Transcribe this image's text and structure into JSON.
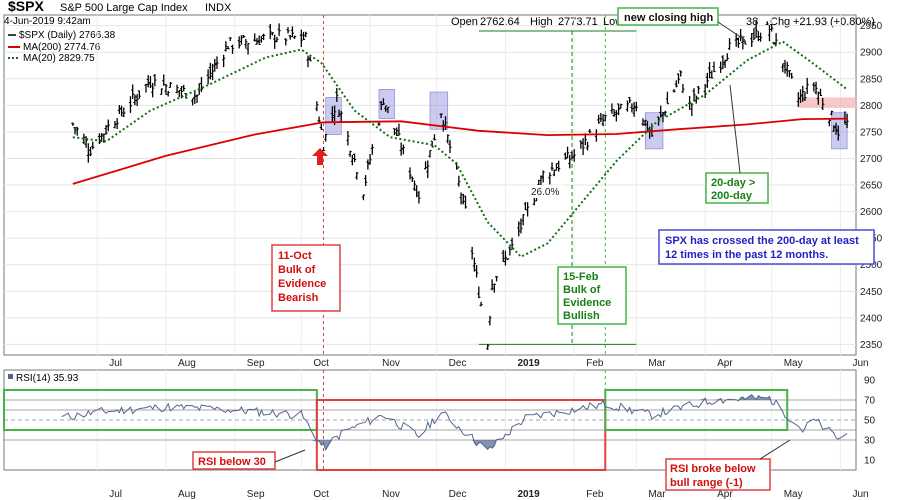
{
  "header": {
    "symbol": "$SPX",
    "name": "S&P 500 Large Cap Index",
    "exchange": "INDX",
    "datetime": "4-Jun-2019 9:42am",
    "open_label": "Open",
    "open": "2762.64",
    "high_label": "High",
    "high": "2773.71",
    "low_label": "Low",
    "vol_frag": "38",
    "chg_label": "Chg",
    "chg": "+21.93 (+0.80%)"
  },
  "legend": [
    {
      "text": "$SPX (Daily) 2766.38",
      "color": "#000000",
      "style": "bar"
    },
    {
      "text": "MA(200) 2774.76",
      "color": "#dd0000",
      "style": "solid"
    },
    {
      "text": "MA(20) 2829.75",
      "color": "#107010",
      "style": "dotted"
    }
  ],
  "annotations": {
    "new_high": "new closing high",
    "oct_box": [
      "11-Oct",
      "Bulk of",
      "Evidence",
      "Bearish"
    ],
    "feb_box": [
      "15-Feb",
      "Bulk of",
      "Evidence",
      "Bullish"
    ],
    "ma_cross": [
      "20-day >",
      "200-day"
    ],
    "spx_note": [
      "SPX has crossed the 200-day at least",
      "12 times in the past 12 months."
    ],
    "pct": "26.0%",
    "rsi_below": "RSI below 30",
    "rsi_broke": [
      "RSI broke below",
      "bull range (-1)"
    ]
  },
  "rsi": {
    "label": "RSI(14) 35.93",
    "ticks": [
      "90",
      "70",
      "50",
      "30",
      "10"
    ]
  },
  "colors": {
    "price": "#000000",
    "ma200": "#dd0000",
    "ma20": "#107010",
    "rsi_line": "#53658f",
    "red_box": "#e04040",
    "green_box": "#46b446",
    "highlight": "#8c8cdc"
  },
  "chart_data": [
    {
      "type": "bar",
      "subtype": "ohlc",
      "title": "$SPX S&P 500 Large Cap Index INDX",
      "x_tick_labels": [
        "Jul",
        "Aug",
        "Sep",
        "Oct",
        "Nov",
        "Dec",
        "2019",
        "Feb",
        "Mar",
        "Apr",
        "May",
        "Jun"
      ],
      "ylim": [
        2330,
        2970
      ],
      "y_ticks": [
        2350,
        2400,
        2450,
        2500,
        2550,
        2600,
        2650,
        2700,
        2750,
        2800,
        2850,
        2900,
        2950
      ],
      "grid": true,
      "legend_position": "top-left",
      "anchors": [
        {
          "date": "2018-06-20",
          "close": 2765
        },
        {
          "date": "2018-06-28",
          "close": 2718
        },
        {
          "date": "2018-07-06",
          "close": 2760
        },
        {
          "date": "2018-07-25",
          "close": 2846
        },
        {
          "date": "2018-08-15",
          "close": 2818
        },
        {
          "date": "2018-08-29",
          "close": 2914
        },
        {
          "date": "2018-09-20",
          "close": 2930
        },
        {
          "date": "2018-10-03",
          "close": 2925
        },
        {
          "date": "2018-10-11",
          "close": 2728
        },
        {
          "date": "2018-10-17",
          "close": 2810
        },
        {
          "date": "2018-10-29",
          "close": 2641
        },
        {
          "date": "2018-11-07",
          "close": 2813
        },
        {
          "date": "2018-11-23",
          "close": 2632
        },
        {
          "date": "2018-12-03",
          "close": 2790
        },
        {
          "date": "2018-12-14",
          "close": 2600
        },
        {
          "date": "2018-12-24",
          "close": 2351
        },
        {
          "date": "2018-12-26",
          "close": 2467
        },
        {
          "date": "2019-01-04",
          "close": 2532
        },
        {
          "date": "2019-01-18",
          "close": 2670
        },
        {
          "date": "2019-02-01",
          "close": 2706
        },
        {
          "date": "2019-02-15",
          "close": 2775
        },
        {
          "date": "2019-03-01",
          "close": 2803
        },
        {
          "date": "2019-03-08",
          "close": 2743
        },
        {
          "date": "2019-03-21",
          "close": 2854
        },
        {
          "date": "2019-03-25",
          "close": 2798
        },
        {
          "date": "2019-04-12",
          "close": 2907
        },
        {
          "date": "2019-04-30",
          "close": 2945
        },
        {
          "date": "2019-05-13",
          "close": 2812
        },
        {
          "date": "2019-05-20",
          "close": 2840
        },
        {
          "date": "2019-05-31",
          "close": 2752
        },
        {
          "date": "2019-06-04",
          "close": 2766
        }
      ],
      "ma200_points": [
        {
          "date": "2018-06-20",
          "value": 2652
        },
        {
          "date": "2018-08-01",
          "value": 2705
        },
        {
          "date": "2018-09-10",
          "value": 2745
        },
        {
          "date": "2018-10-11",
          "value": 2768
        },
        {
          "date": "2018-11-15",
          "value": 2770
        },
        {
          "date": "2018-12-20",
          "value": 2752
        },
        {
          "date": "2019-01-20",
          "value": 2744
        },
        {
          "date": "2019-02-20",
          "value": 2746
        },
        {
          "date": "2019-03-20",
          "value": 2755
        },
        {
          "date": "2019-04-20",
          "value": 2764
        },
        {
          "date": "2019-05-15",
          "value": 2774
        },
        {
          "date": "2019-06-04",
          "value": 2775
        }
      ],
      "ma20_points": [
        {
          "date": "2018-06-20",
          "value": 2740
        },
        {
          "date": "2018-07-05",
          "value": 2732
        },
        {
          "date": "2018-07-25",
          "value": 2790
        },
        {
          "date": "2018-08-20",
          "value": 2838
        },
        {
          "date": "2018-09-15",
          "value": 2890
        },
        {
          "date": "2018-10-01",
          "value": 2905
        },
        {
          "date": "2018-10-10",
          "value": 2880
        },
        {
          "date": "2018-10-25",
          "value": 2790
        },
        {
          "date": "2018-11-10",
          "value": 2740
        },
        {
          "date": "2018-11-30",
          "value": 2725
        },
        {
          "date": "2018-12-10",
          "value": 2690
        },
        {
          "date": "2018-12-24",
          "value": 2580
        },
        {
          "date": "2019-01-08",
          "value": 2515
        },
        {
          "date": "2019-01-20",
          "value": 2540
        },
        {
          "date": "2019-02-05",
          "value": 2620
        },
        {
          "date": "2019-02-20",
          "value": 2695
        },
        {
          "date": "2019-03-10",
          "value": 2768
        },
        {
          "date": "2019-04-01",
          "value": 2820
        },
        {
          "date": "2019-04-20",
          "value": 2885
        },
        {
          "date": "2019-05-06",
          "value": 2920
        },
        {
          "date": "2019-05-20",
          "value": 2878
        },
        {
          "date": "2019-06-04",
          "value": 2830
        }
      ],
      "markers": {
        "oct_11_line": "2018-10-11",
        "feb_15_line": "2019-02-15",
        "jan_guide": "2019-01-31",
        "range_top": 2940,
        "range_bottom": 2350
      },
      "highlights": [
        {
          "from": "2018-10-12",
          "to": "2018-10-19",
          "low": 2745,
          "high": 2815
        },
        {
          "from": "2018-11-05",
          "to": "2018-11-12",
          "low": 2775,
          "high": 2830
        },
        {
          "from": "2018-11-28",
          "to": "2018-12-06",
          "low": 2755,
          "high": 2825
        },
        {
          "from": "2019-03-05",
          "to": "2019-03-13",
          "low": 2718,
          "high": 2786
        },
        {
          "from": "2019-05-28",
          "to": "2019-06-04",
          "low": 2718,
          "high": 2786
        }
      ],
      "pink_band": {
        "from": "2019-05-13",
        "to": "2019-06-04",
        "low": 2795,
        "high": 2815
      }
    },
    {
      "type": "line",
      "title": "RSI(14) 35.93",
      "ylim": [
        0,
        100
      ],
      "y_ticks": [
        10,
        30,
        50,
        70,
        90
      ],
      "reference_lines": [
        30,
        40,
        50,
        60,
        70
      ],
      "anchors": [
        {
          "date": "2018-06-15",
          "value": 52
        },
        {
          "date": "2018-07-01",
          "value": 58
        },
        {
          "date": "2018-08-01",
          "value": 63
        },
        {
          "date": "2018-09-01",
          "value": 60
        },
        {
          "date": "2018-10-01",
          "value": 55
        },
        {
          "date": "2018-10-11",
          "value": 22
        },
        {
          "date": "2018-10-20",
          "value": 38
        },
        {
          "date": "2018-11-07",
          "value": 55
        },
        {
          "date": "2018-11-23",
          "value": 34
        },
        {
          "date": "2018-12-03",
          "value": 58
        },
        {
          "date": "2018-12-24",
          "value": 19
        },
        {
          "date": "2019-01-10",
          "value": 52
        },
        {
          "date": "2019-02-15",
          "value": 66
        },
        {
          "date": "2019-03-08",
          "value": 55
        },
        {
          "date": "2019-04-05",
          "value": 70
        },
        {
          "date": "2019-04-30",
          "value": 72
        },
        {
          "date": "2019-05-15",
          "value": 40
        },
        {
          "date": "2019-05-20",
          "value": 50
        },
        {
          "date": "2019-06-01",
          "value": 30
        },
        {
          "date": "2019-06-04",
          "value": 36
        }
      ],
      "boxes": [
        {
          "color": "green",
          "from": "2018-05-20",
          "to": "2018-10-08",
          "low": 40,
          "high": 80
        },
        {
          "color": "red",
          "from": "2018-10-08",
          "to": "2019-02-15",
          "low": 0,
          "high": 70
        },
        {
          "color": "green",
          "from": "2019-02-15",
          "to": "2019-05-08",
          "low": 40,
          "high": 80
        }
      ]
    }
  ]
}
